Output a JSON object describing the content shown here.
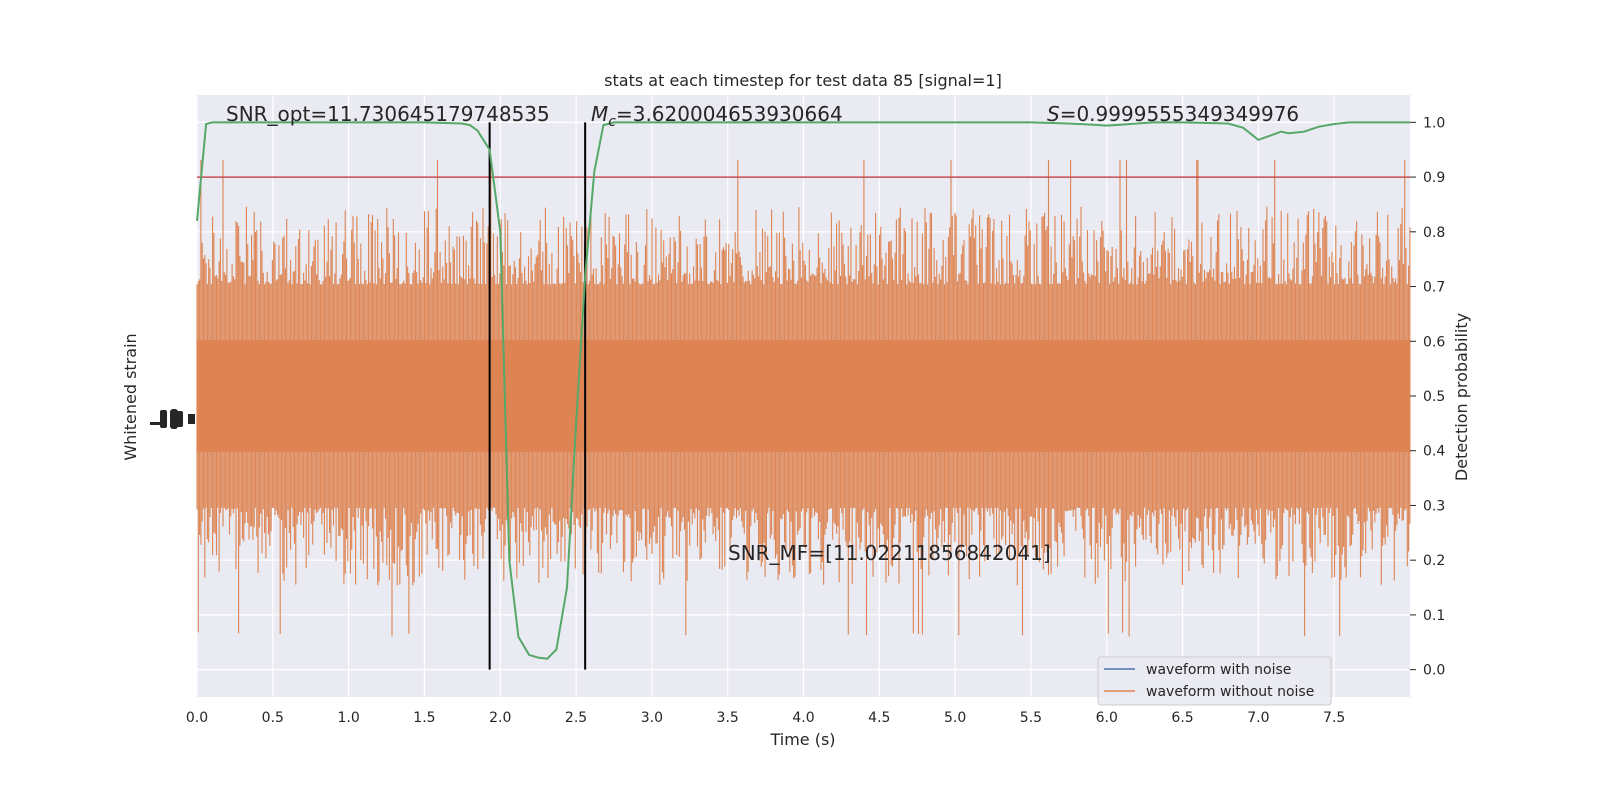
{
  "chart_data": {
    "type": "line",
    "title": "stats at each timestep for test data 85 [signal=1]",
    "xlabel": "Time (s)",
    "ylabel_left": "Whitened strain",
    "ylabel_right": "Detection probability",
    "xlim": [
      0.0,
      8.0
    ],
    "ylim_right": [
      -0.05,
      1.05
    ],
    "x_ticks": [
      "0.0",
      "0.5",
      "1.0",
      "1.5",
      "2.0",
      "2.5",
      "3.0",
      "3.5",
      "4.0",
      "4.5",
      "5.0",
      "5.5",
      "6.0",
      "6.5",
      "7.0",
      "7.5"
    ],
    "y_ticks_right": [
      "0.0",
      "0.1",
      "0.2",
      "0.3",
      "0.4",
      "0.5",
      "0.6",
      "0.7",
      "0.8",
      "0.9",
      "1.0"
    ],
    "grid": true,
    "legend_position": "bottom-right",
    "annotations": {
      "snr_opt": "SNR_opt=11.730645179748535",
      "mc_symbol": "M",
      "mc_sub": "c",
      "mc_value": "=3.620004653930664",
      "s_symbol": "S",
      "s_value": "=0.9999555349349976",
      "snr_mf": "SNR_MF=[11.02211856842041]"
    },
    "series": [
      {
        "name": "waveform with noise",
        "color": "#4c72b0"
      },
      {
        "name": "waveform without noise",
        "color": "#dd8452"
      }
    ],
    "threshold": {
      "y": 0.9,
      "color": "#c44e52"
    },
    "vertical_lines": [
      1.93,
      2.56
    ],
    "detection_probability": {
      "color": "#55a868",
      "x": [
        0.0,
        0.06,
        0.1,
        0.2,
        0.5,
        1.0,
        1.5,
        1.75,
        1.8,
        1.85,
        1.93,
        2.0,
        2.06,
        2.12,
        2.19,
        2.25,
        2.31,
        2.37,
        2.44,
        2.5,
        2.56,
        2.62,
        2.68,
        2.75,
        3.0,
        4.0,
        5.0,
        5.5,
        5.75,
        5.9,
        6.0,
        6.1,
        6.3,
        6.5,
        6.8,
        6.9,
        7.0,
        7.1,
        7.15,
        7.2,
        7.3,
        7.4,
        7.5,
        7.6,
        7.75,
        8.0
      ],
      "y": [
        0.82,
        0.997,
        1.0,
        1.0,
        1.0,
        1.0,
        1.0,
        0.998,
        0.995,
        0.985,
        0.95,
        0.8,
        0.2,
        0.06,
        0.027,
        0.022,
        0.02,
        0.037,
        0.15,
        0.45,
        0.72,
        0.91,
        0.995,
        1.0,
        1.0,
        1.0,
        1.0,
        1.0,
        0.998,
        0.996,
        0.994,
        0.996,
        1.0,
        1.0,
        0.998,
        0.99,
        0.968,
        0.978,
        0.983,
        0.98,
        0.983,
        0.992,
        0.997,
        1.0,
        1.0,
        1.0
      ]
    }
  }
}
